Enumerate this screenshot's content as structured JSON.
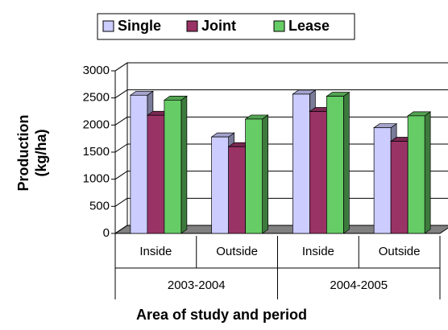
{
  "chart_data": {
    "type": "bar3d",
    "categories": [
      "Inside",
      "Outside",
      "Inside",
      "Outside"
    ],
    "groups": [
      "2003-2004",
      "2004-2005"
    ],
    "series": [
      {
        "name": "Single",
        "color": "#ccccff",
        "values": [
          2550,
          1780,
          2570,
          1950
        ]
      },
      {
        "name": "Joint",
        "color": "#993366",
        "values": [
          2180,
          1600,
          2250,
          1700
        ]
      },
      {
        "name": "Lease",
        "color": "#66cc66",
        "values": [
          2460,
          2110,
          2530,
          2170
        ]
      }
    ],
    "ylim": [
      0,
      3000
    ],
    "yticks": [
      0,
      500,
      1000,
      1500,
      2000,
      2500,
      3000
    ],
    "y_label": [
      "Production",
      "(kg/ha)"
    ],
    "x_label": "Area of study and period",
    "legend": "top"
  }
}
